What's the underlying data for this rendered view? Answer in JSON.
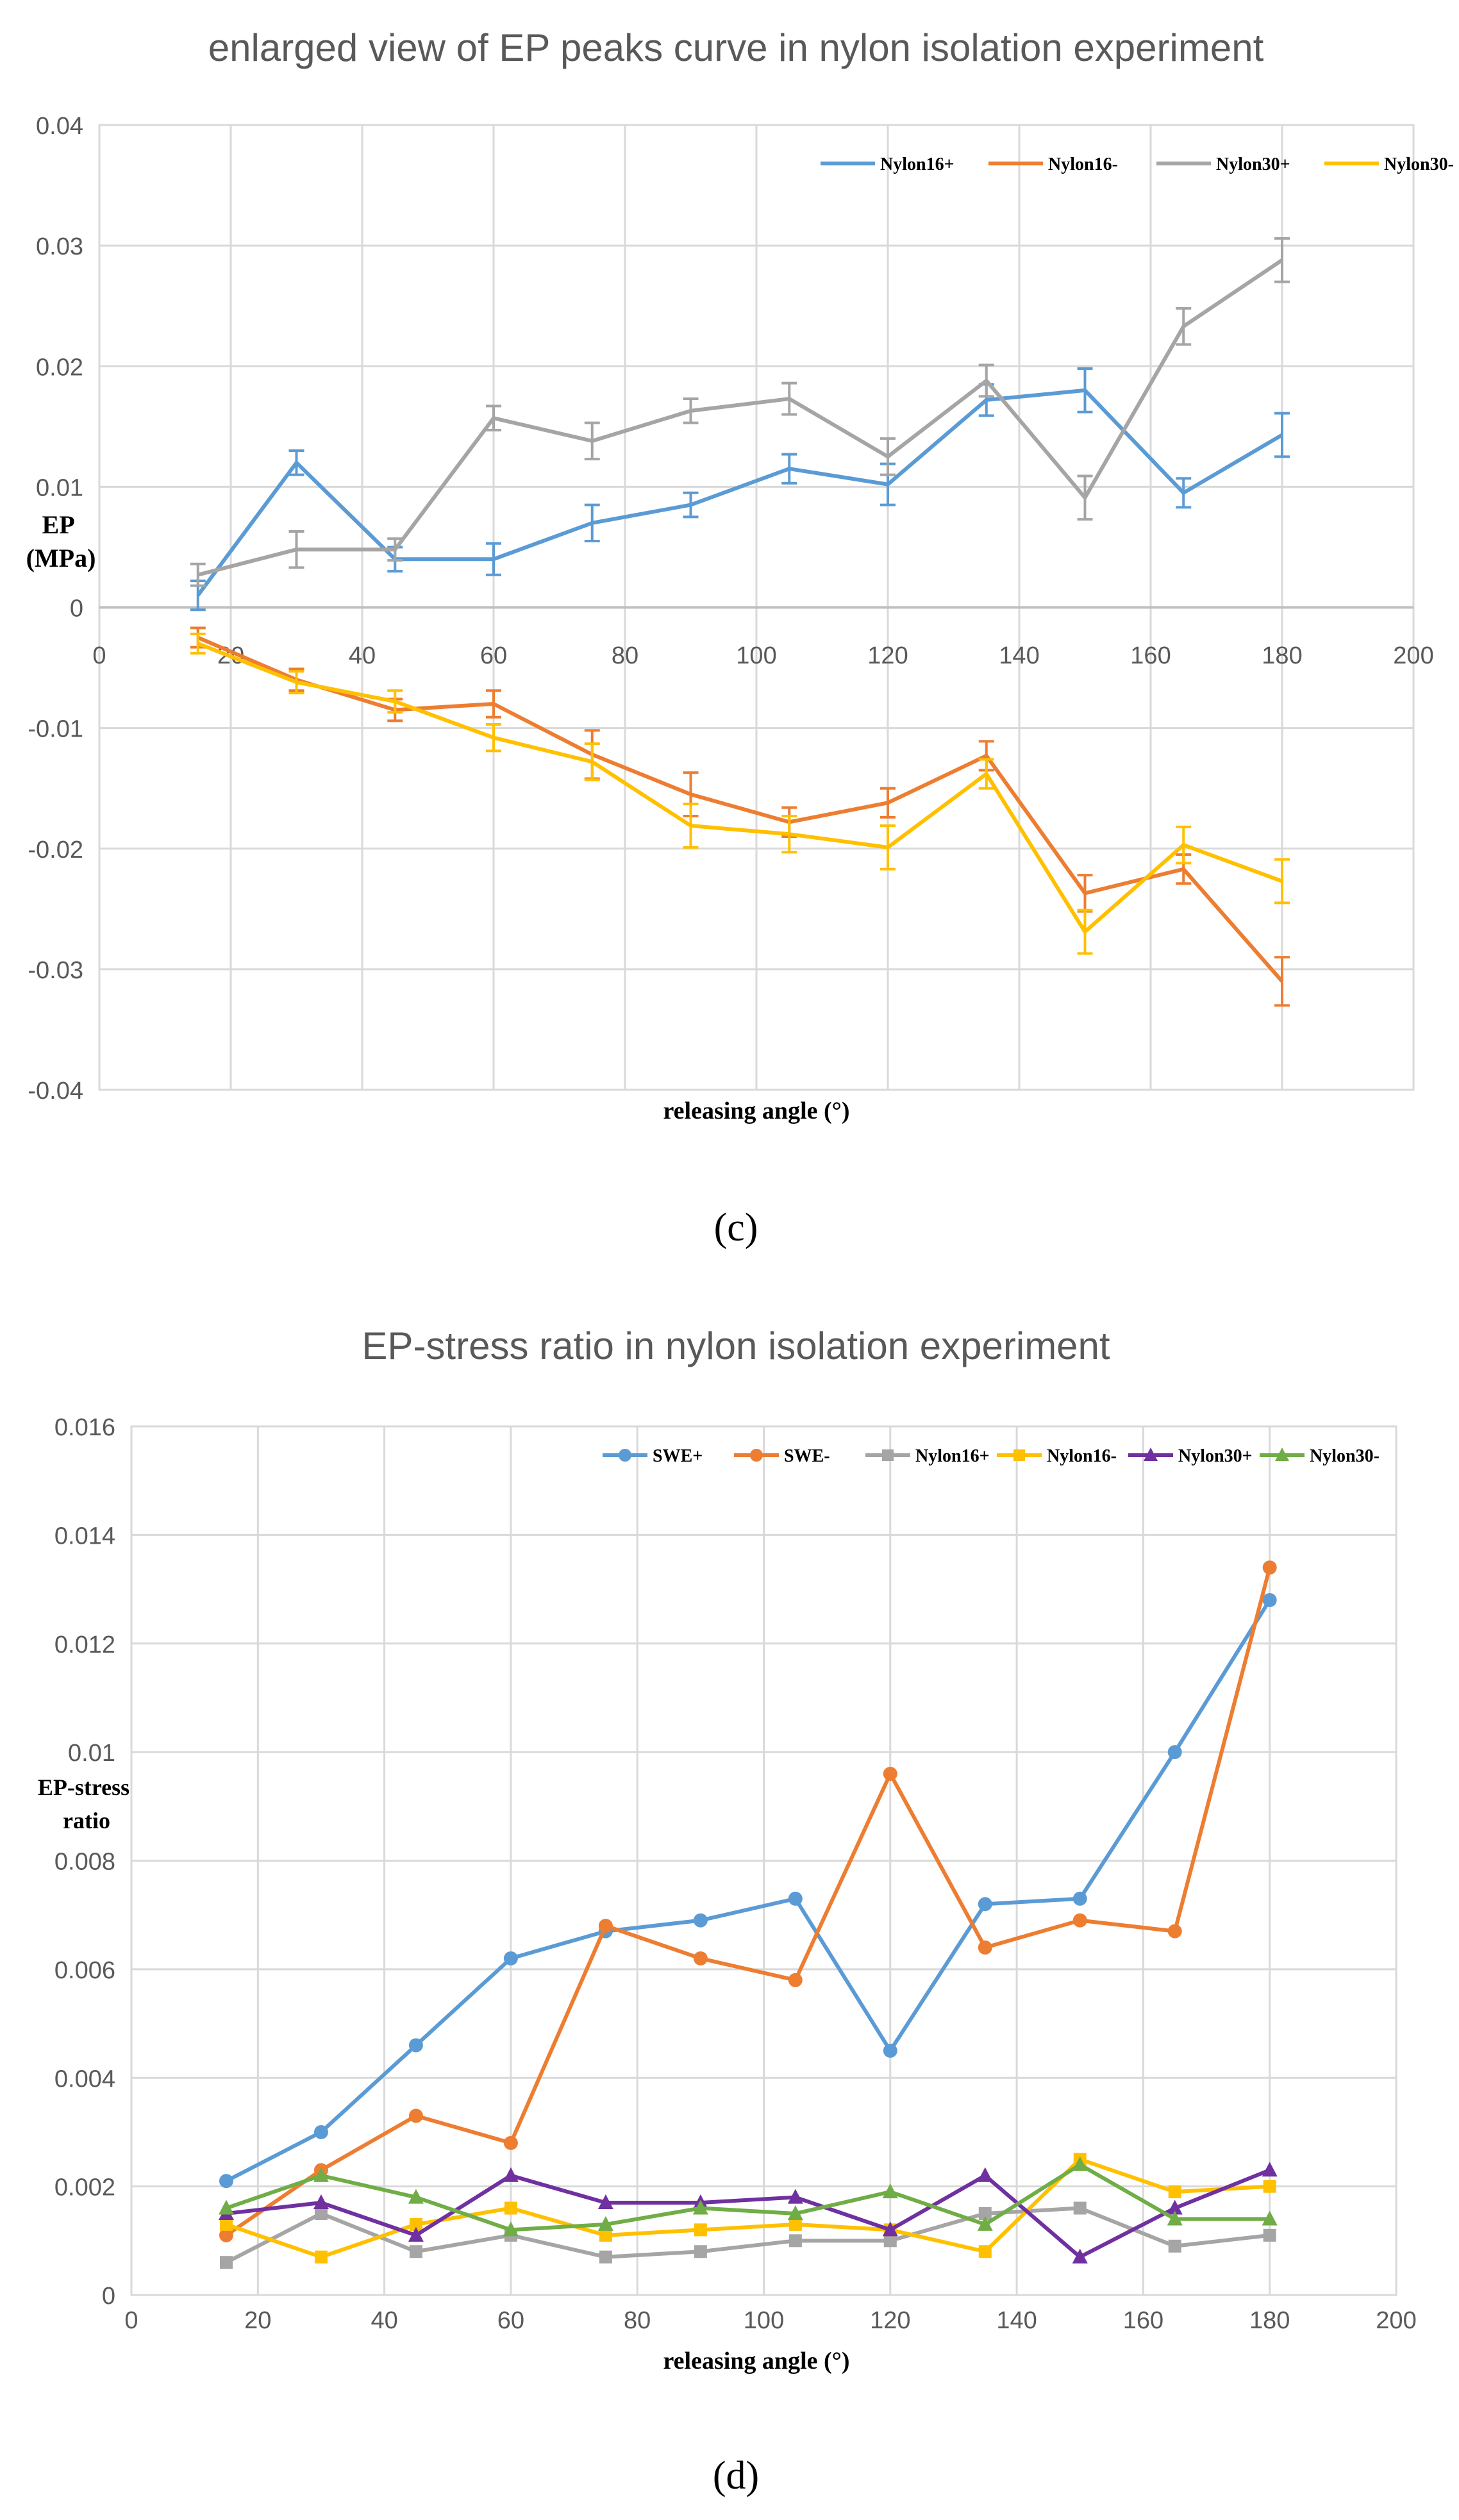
{
  "chart_data": [
    {
      "type": "line",
      "panel": "c",
      "title": "enlarged view of EP peaks curve in nylon isolation experiment",
      "xlabel": "releasing angle (°)",
      "ylabel": "EP\n(MPa)",
      "xlim": [
        0,
        200
      ],
      "ylim": [
        -0.04,
        0.04
      ],
      "xticks": [
        "0",
        "20",
        "40",
        "60",
        "80",
        "100",
        "120",
        "140",
        "160",
        "180",
        "200"
      ],
      "yticks": [
        "0.04",
        "0.03",
        "0.02",
        "0.01",
        "0",
        "-0.01",
        "-0.02",
        "-0.03",
        "-0.04"
      ],
      "legend_position": "top-right",
      "x": [
        15,
        30,
        45,
        60,
        75,
        90,
        105,
        120,
        135,
        150,
        165,
        180
      ],
      "series": [
        {
          "name": "Nylon16+",
          "color": "#5b9bd5",
          "marker": "none",
          "values": [
            0.001,
            0.012,
            0.004,
            0.004,
            0.007,
            0.0085,
            0.0115,
            0.0102,
            0.0172,
            0.018,
            0.0095,
            0.0143
          ],
          "errors": [
            0.0012,
            0.001,
            0.001,
            0.0013,
            0.0015,
            0.001,
            0.0012,
            0.0017,
            0.0013,
            0.0018,
            0.0012,
            0.0018
          ]
        },
        {
          "name": "Nylon16-",
          "color": "#ed7d31",
          "marker": "none",
          "values": [
            -0.0025,
            -0.006,
            -0.0085,
            -0.008,
            -0.0122,
            -0.0155,
            -0.0178,
            -0.0162,
            -0.0123,
            -0.0237,
            -0.0217,
            -0.031
          ],
          "errors": [
            0.0008,
            0.0009,
            0.0009,
            0.0011,
            0.002,
            0.0018,
            0.0012,
            0.0012,
            0.0012,
            0.0015,
            0.0012,
            0.002
          ]
        },
        {
          "name": "Nylon30+",
          "color": "#a5a5a5",
          "marker": "none",
          "values": [
            0.0027,
            0.0048,
            0.0048,
            0.0157,
            0.0138,
            0.0163,
            0.0173,
            0.0125,
            0.0188,
            0.0091,
            0.0233,
            0.0288
          ],
          "errors": [
            0.0009,
            0.0015,
            0.0009,
            0.001,
            0.0015,
            0.001,
            0.0013,
            0.0015,
            0.0013,
            0.0018,
            0.0015,
            0.0018
          ]
        },
        {
          "name": "Nylon30-",
          "color": "#ffc000",
          "marker": "none",
          "values": [
            -0.003,
            -0.0062,
            -0.0078,
            -0.0108,
            -0.0128,
            -0.0181,
            -0.0188,
            -0.0199,
            -0.0138,
            -0.0269,
            -0.0197,
            -0.0227
          ],
          "errors": [
            0.0008,
            0.0009,
            0.0009,
            0.0011,
            0.0015,
            0.0018,
            0.0015,
            0.0018,
            0.0012,
            0.0018,
            0.0015,
            0.0018
          ]
        }
      ]
    },
    {
      "type": "line",
      "panel": "d",
      "title": "EP-stress ratio in nylon isolation experiment",
      "xlabel": "releasing angle (°)",
      "ylabel": "EP-stress\nratio",
      "xlim": [
        0,
        200
      ],
      "ylim": [
        0,
        0.016
      ],
      "xticks": [
        "0",
        "20",
        "40",
        "60",
        "80",
        "100",
        "120",
        "140",
        "160",
        "180",
        "200"
      ],
      "yticks": [
        "0.016",
        "0.014",
        "0.012",
        "0.01",
        "0.008",
        "0.006",
        "0.004",
        "0.002",
        "0"
      ],
      "legend_position": "top-right",
      "x": [
        15,
        30,
        45,
        60,
        75,
        90,
        105,
        120,
        135,
        150,
        165,
        180
      ],
      "series": [
        {
          "name": "SWE+",
          "color": "#5b9bd5",
          "marker": "circle",
          "values": [
            0.0021,
            0.003,
            0.0046,
            0.0062,
            0.0067,
            0.0069,
            0.0073,
            0.0045,
            0.0072,
            0.0073,
            0.01,
            0.0128
          ]
        },
        {
          "name": "SWE-",
          "color": "#ed7d31",
          "marker": "circle",
          "values": [
            0.0011,
            0.0023,
            0.0033,
            0.0028,
            0.0068,
            0.0062,
            0.0058,
            0.0096,
            0.0064,
            0.0069,
            0.0067,
            0.0134
          ]
        },
        {
          "name": "Nylon16+",
          "color": "#a5a5a5",
          "marker": "square",
          "values": [
            0.0006,
            0.0015,
            0.0008,
            0.0011,
            0.0007,
            0.0008,
            0.001,
            0.001,
            0.0015,
            0.0016,
            0.0009,
            0.0011
          ]
        },
        {
          "name": "Nylon16-",
          "color": "#ffc000",
          "marker": "square",
          "values": [
            0.0013,
            0.0007,
            0.0013,
            0.0016,
            0.0011,
            0.0012,
            0.0013,
            0.0012,
            0.0008,
            0.0025,
            0.0019,
            0.002
          ]
        },
        {
          "name": "Nylon30+",
          "color": "#7030a0",
          "marker": "triangle",
          "values": [
            0.0015,
            0.0017,
            0.0011,
            0.0022,
            0.0017,
            0.0017,
            0.0018,
            0.0012,
            0.0022,
            0.0007,
            0.0016,
            0.0023
          ]
        },
        {
          "name": "Nylon30-",
          "color": "#70ad47",
          "marker": "triangle",
          "values": [
            0.0016,
            0.0022,
            0.0018,
            0.0012,
            0.0013,
            0.0016,
            0.0015,
            0.0019,
            0.0013,
            0.0024,
            0.0014,
            0.0014
          ]
        }
      ]
    }
  ],
  "captions": [
    "(c)",
    "(d)"
  ]
}
